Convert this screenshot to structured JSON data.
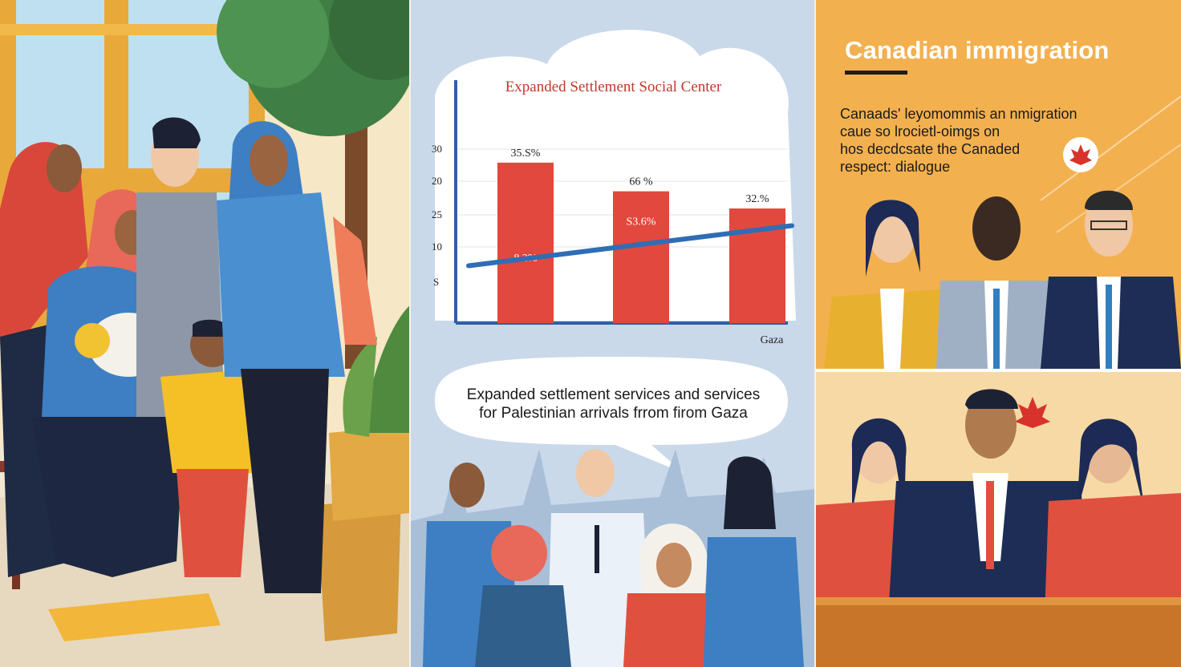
{
  "chart_data": {
    "type": "bar",
    "title": "Expanded Settlement Social Center",
    "categories": [
      "",
      "",
      ""
    ],
    "bar_top_labels": [
      "35.S%",
      "66 %",
      "32.%"
    ],
    "bar_inner_labels": [
      "8.2%",
      "S3.6%",
      ""
    ],
    "values": [
      28,
      23,
      20
    ],
    "ytick_labels": [
      "30",
      "20",
      "25",
      "10",
      "S"
    ],
    "xlabel": "Gaza",
    "ylim": [
      0,
      34
    ],
    "trend_line": {
      "from": 10,
      "to": 17
    },
    "colors": {
      "bar": "#e2483d",
      "trend": "#2f6db5",
      "axis": "#2f5fa8"
    }
  },
  "middle_bubble": {
    "line1": "Expanded settlement services and services",
    "line2": "for Palestinian arrivals frrom firom Gaza"
  },
  "right_panel": {
    "title": "Canadian immigration",
    "body_lines": [
      "Canaads' leyomommis an nmigration",
      "caue so lrocietl-oimgs on",
      "hos decdcsate the Canaded",
      "respect: dialogue"
    ],
    "icon": "maple-leaf-icon"
  },
  "palette": {
    "left_bg": "#f6e7c6",
    "mid_bg": "#c9d9ea",
    "right_bg": "#f3b04f",
    "accent_red": "#e2483d",
    "accent_blue": "#2f6db5"
  }
}
